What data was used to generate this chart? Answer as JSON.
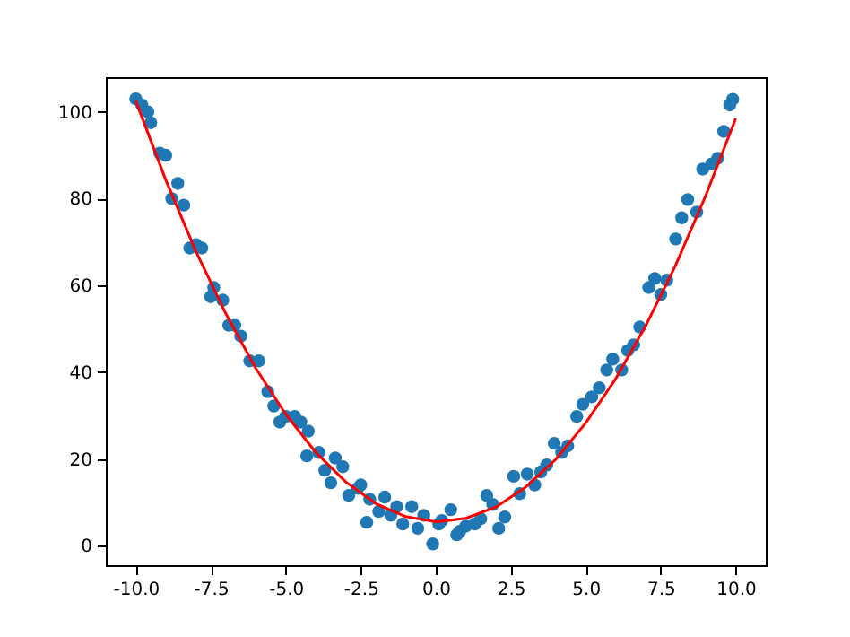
{
  "chart_data": {
    "type": "scatter",
    "grid": false,
    "xlim": [
      -11,
      11
    ],
    "ylim": [
      -4.5,
      108
    ],
    "xticks": [
      {
        "value": -10,
        "label": "-10.0"
      },
      {
        "value": -7.5,
        "label": "-7.5"
      },
      {
        "value": -5,
        "label": "-5.0"
      },
      {
        "value": -2.5,
        "label": "-2.5"
      },
      {
        "value": 0,
        "label": "0.0"
      },
      {
        "value": 2.5,
        "label": "2.5"
      },
      {
        "value": 5,
        "label": "5.0"
      },
      {
        "value": 7.5,
        "label": "7.5"
      },
      {
        "value": 10,
        "label": "10.0"
      }
    ],
    "yticks": [
      0,
      20,
      40,
      60,
      80,
      100
    ],
    "series": [
      {
        "marker": "circle",
        "color": "#1f77b4",
        "x": [
          -10.0,
          -9.8,
          -9.6,
          -9.5,
          -9.2,
          -9.0,
          -8.8,
          -8.6,
          -8.4,
          -8.2,
          -8.0,
          -7.8,
          -7.5,
          -7.4,
          -7.1,
          -6.9,
          -6.7,
          -6.5,
          -6.2,
          -5.9,
          -5.6,
          -5.4,
          -5.2,
          -5.0,
          -4.7,
          -4.5,
          -4.25,
          -4.3,
          -3.9,
          -3.7,
          -3.5,
          -3.35,
          -3.1,
          -2.9,
          -2.6,
          -2.3,
          -2.5,
          -2.2,
          -1.9,
          -1.7,
          -1.5,
          -1.3,
          -1.1,
          -0.8,
          -0.6,
          -0.4,
          -0.1,
          0.1,
          0.2,
          0.5,
          0.7,
          0.8,
          1.0,
          1.3,
          1.5,
          1.7,
          1.9,
          2.1,
          2.3,
          2.6,
          2.8,
          3.05,
          3.3,
          3.5,
          3.7,
          3.95,
          4.2,
          4.4,
          4.7,
          4.9,
          5.2,
          5.45,
          5.7,
          5.9,
          6.2,
          6.4,
          6.6,
          6.8,
          7.1,
          7.3,
          7.5,
          7.7,
          8.0,
          8.2,
          8.4,
          8.7,
          8.9,
          9.2,
          9.4,
          9.6,
          9.8,
          9.9
        ],
        "values": [
          103,
          101.6,
          100,
          97.5,
          90.5,
          90,
          80,
          83.5,
          78.5,
          68.6,
          69.4,
          68.6,
          57.4,
          59.5,
          56.6,
          50.8,
          50.8,
          48.3,
          42.6,
          42.6,
          35.5,
          32.2,
          28.5,
          29.8,
          29.8,
          28.5,
          26.4,
          20.7,
          21.5,
          17.4,
          14.5,
          20.2,
          18.2,
          11.6,
          13.2,
          5.4,
          14,
          10.7,
          7.9,
          11.2,
          7,
          9,
          5,
          9,
          4,
          7,
          0.4,
          5,
          5.8,
          8.3,
          2.5,
          3.3,
          4.5,
          5,
          6.2,
          11.6,
          9.5,
          4,
          6.6,
          16,
          12,
          16.5,
          14,
          17,
          18.6,
          23.6,
          21.5,
          23,
          29.8,
          32.6,
          34.3,
          36.4,
          40.5,
          43,
          40.5,
          45,
          46.3,
          50.4,
          59.5,
          61.6,
          57.9,
          61.2,
          70.7,
          75.6,
          79.8,
          76.9,
          86.8,
          88,
          89.3,
          95.5,
          101.6,
          102.9
        ]
      },
      {
        "type": "line",
        "marker": "none",
        "color": "#ff0000",
        "x": [
          -10,
          -9,
          -8,
          -7,
          -6,
          -5,
          -4,
          -3,
          -2,
          -1,
          0,
          1,
          2,
          3,
          4,
          5,
          6,
          7,
          8,
          9,
          10
        ],
        "values": [
          102.5,
          84.3,
          67.9,
          53.5,
          40.9,
          30.3,
          21.5,
          14.7,
          9.7,
          6.7,
          5.5,
          6.3,
          8.9,
          13.5,
          19.9,
          28.3,
          38.5,
          50.7,
          64.7,
          80.7,
          98.5
        ]
      }
    ]
  }
}
